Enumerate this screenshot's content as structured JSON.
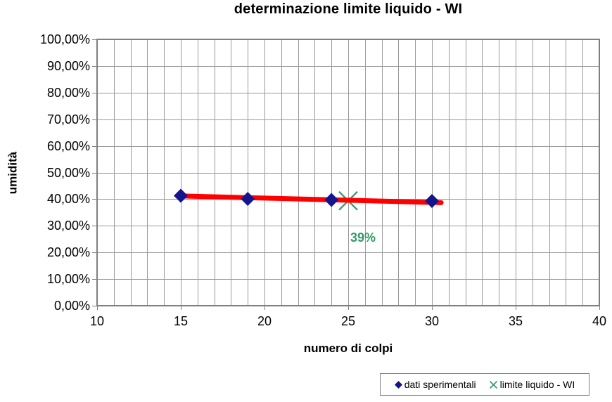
{
  "colors": {
    "background": "#FFFFFF",
    "grid": "#999999",
    "axis": "#808080",
    "diamond": "#14148C",
    "trend": "#FF0000",
    "limit_green": "#339966",
    "text": "#000000"
  },
  "legend": {
    "items": [
      {
        "label": "dati sperimentali",
        "marker": "diamond",
        "color": "#14148C"
      },
      {
        "label": "limite liquido - WI",
        "marker": "x",
        "color": "#339966"
      }
    ]
  },
  "chart_data": {
    "type": "scatter",
    "title": "determinazione limite liquido - WI",
    "xlabel": "numero di colpi",
    "ylabel": "umidità",
    "xlim": [
      10,
      40
    ],
    "ylim": [
      0,
      100
    ],
    "x_grid_step": 1,
    "y_grid_step": 10,
    "grid": "on",
    "legend_position": "bottom-right outside plot",
    "x_tick_values": [
      10,
      15,
      20,
      25,
      30,
      35,
      40
    ],
    "x_tick_labels": [
      "10",
      "15",
      "20",
      "25",
      "30",
      "35",
      "40"
    ],
    "y_tick_values": [
      100,
      90,
      80,
      70,
      60,
      50,
      40,
      30,
      20,
      10,
      0
    ],
    "y_tick_labels": [
      "100,00%",
      "90,00%",
      "80,00%",
      "70,00%",
      "60,00%",
      "50,00%",
      "40,00%",
      "30,00%",
      "20,00%",
      "10,00%",
      "0,00%"
    ],
    "series": [
      {
        "name": "dati sperimentali",
        "marker": "diamond",
        "color": "#14148C",
        "points": [
          {
            "x": 15,
            "y_pct": 41.3
          },
          {
            "x": 19,
            "y_pct": 40.1
          },
          {
            "x": 24,
            "y_pct": 39.7
          },
          {
            "x": 30,
            "y_pct": 39.3
          }
        ]
      },
      {
        "name": "limite liquido - WI",
        "marker": "x",
        "color": "#339966",
        "points": [
          {
            "x": 25,
            "y_pct": 39.4
          }
        ]
      }
    ],
    "trend_line": {
      "color": "#FF0000",
      "from": {
        "x": 14.8,
        "y_pct": 41.25
      },
      "to": {
        "x": 30.55,
        "y_pct": 38.7
      }
    },
    "annotation": {
      "text": "39%",
      "color": "#339966"
    }
  }
}
